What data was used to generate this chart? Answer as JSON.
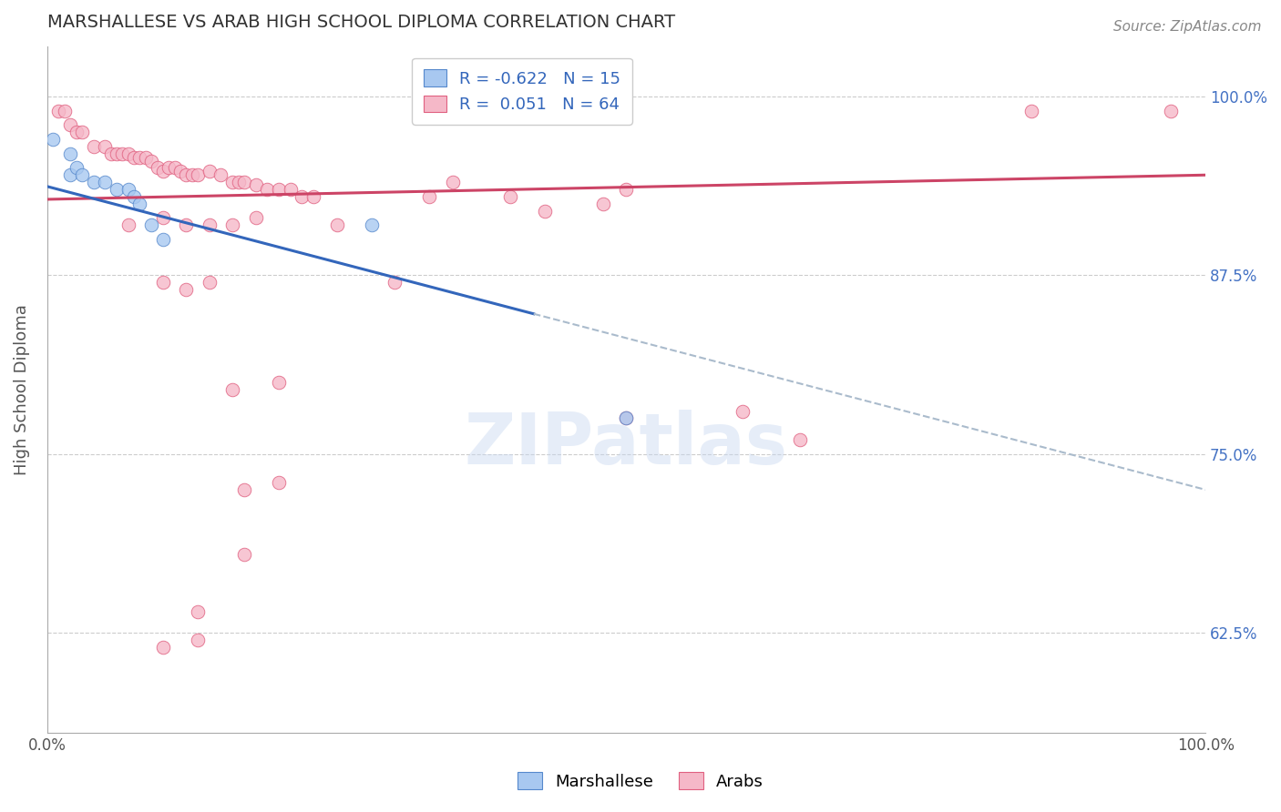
{
  "title": "MARSHALLESE VS ARAB HIGH SCHOOL DIPLOMA CORRELATION CHART",
  "source": "Source: ZipAtlas.com",
  "ylabel": "High School Diploma",
  "xlabel": "",
  "legend_marshallese_R": "-0.622",
  "legend_marshallese_N": "15",
  "legend_arab_R": "0.051",
  "legend_arab_N": "64",
  "watermark": "ZIPatlas",
  "xlim": [
    0.0,
    1.0
  ],
  "ylim": [
    0.555,
    1.035
  ],
  "yticks": [
    0.625,
    0.75,
    0.875,
    1.0
  ],
  "ytick_labels": [
    "62.5%",
    "75.0%",
    "87.5%",
    "100.0%"
  ],
  "xticks": [
    0.0,
    0.1,
    0.2,
    0.3,
    0.4,
    0.5,
    0.6,
    0.7,
    0.8,
    0.9,
    1.0
  ],
  "xtick_labels": [
    "0.0%",
    "",
    "",
    "",
    "",
    "",
    "",
    "",
    "",
    "",
    "100.0%"
  ],
  "blue_color": "#A8C8F0",
  "pink_color": "#F5B8C8",
  "blue_edge_color": "#5588CC",
  "pink_edge_color": "#E06080",
  "blue_line_color": "#3366BB",
  "pink_line_color": "#CC4466",
  "dashed_line_color": "#AABBCC",
  "title_color": "#333333",
  "axis_label_color": "#555555",
  "right_label_color": "#4472C4",
  "blue_line_start_x": 0.0,
  "blue_line_end_solid_x": 0.42,
  "blue_line_end_dashed_x": 1.0,
  "blue_line_start_y": 0.937,
  "blue_line_end_y": 0.725,
  "pink_line_start_x": 0.0,
  "pink_line_end_x": 1.0,
  "pink_line_start_y": 0.928,
  "pink_line_end_y": 0.945,
  "marshallese_points": [
    [
      0.005,
      0.97
    ],
    [
      0.02,
      0.96
    ],
    [
      0.02,
      0.945
    ],
    [
      0.025,
      0.95
    ],
    [
      0.03,
      0.945
    ],
    [
      0.04,
      0.94
    ],
    [
      0.05,
      0.94
    ],
    [
      0.06,
      0.935
    ],
    [
      0.07,
      0.935
    ],
    [
      0.075,
      0.93
    ],
    [
      0.08,
      0.925
    ],
    [
      0.09,
      0.91
    ],
    [
      0.1,
      0.9
    ],
    [
      0.28,
      0.91
    ],
    [
      0.5,
      0.775
    ]
  ],
  "arab_points": [
    [
      0.01,
      0.99
    ],
    [
      0.015,
      0.99
    ],
    [
      0.02,
      0.98
    ],
    [
      0.025,
      0.975
    ],
    [
      0.03,
      0.975
    ],
    [
      0.04,
      0.965
    ],
    [
      0.05,
      0.965
    ],
    [
      0.055,
      0.96
    ],
    [
      0.06,
      0.96
    ],
    [
      0.065,
      0.96
    ],
    [
      0.07,
      0.96
    ],
    [
      0.075,
      0.957
    ],
    [
      0.08,
      0.957
    ],
    [
      0.085,
      0.957
    ],
    [
      0.09,
      0.955
    ],
    [
      0.095,
      0.95
    ],
    [
      0.1,
      0.948
    ],
    [
      0.105,
      0.95
    ],
    [
      0.11,
      0.95
    ],
    [
      0.115,
      0.948
    ],
    [
      0.12,
      0.945
    ],
    [
      0.125,
      0.945
    ],
    [
      0.13,
      0.945
    ],
    [
      0.14,
      0.948
    ],
    [
      0.15,
      0.945
    ],
    [
      0.16,
      0.94
    ],
    [
      0.165,
      0.94
    ],
    [
      0.17,
      0.94
    ],
    [
      0.18,
      0.938
    ],
    [
      0.19,
      0.935
    ],
    [
      0.2,
      0.935
    ],
    [
      0.21,
      0.935
    ],
    [
      0.22,
      0.93
    ],
    [
      0.23,
      0.93
    ],
    [
      0.07,
      0.91
    ],
    [
      0.1,
      0.915
    ],
    [
      0.12,
      0.91
    ],
    [
      0.14,
      0.91
    ],
    [
      0.16,
      0.91
    ],
    [
      0.18,
      0.915
    ],
    [
      0.1,
      0.87
    ],
    [
      0.12,
      0.865
    ],
    [
      0.14,
      0.87
    ],
    [
      0.25,
      0.91
    ],
    [
      0.3,
      0.87
    ],
    [
      0.33,
      0.93
    ],
    [
      0.35,
      0.94
    ],
    [
      0.4,
      0.93
    ],
    [
      0.43,
      0.92
    ],
    [
      0.48,
      0.925
    ],
    [
      0.5,
      0.935
    ],
    [
      0.17,
      0.725
    ],
    [
      0.2,
      0.73
    ],
    [
      0.17,
      0.68
    ],
    [
      0.13,
      0.62
    ],
    [
      0.1,
      0.615
    ],
    [
      0.16,
      0.795
    ],
    [
      0.2,
      0.8
    ],
    [
      0.13,
      0.64
    ],
    [
      0.85,
      0.99
    ],
    [
      0.97,
      0.99
    ],
    [
      0.5,
      0.775
    ],
    [
      0.6,
      0.78
    ],
    [
      0.65,
      0.76
    ]
  ]
}
